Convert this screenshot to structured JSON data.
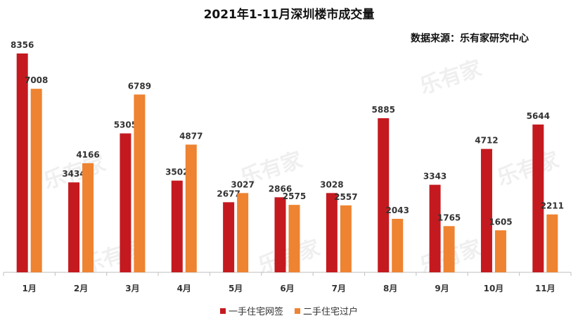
{
  "page": {
    "title": "2021年1-11月深圳楼市成交量",
    "source": "数据来源：乐有家研究中心",
    "watermark": "乐有家"
  },
  "colors": {
    "series1": "#c41a1f",
    "series2": "#ee8331",
    "axis": "#bfbfbf"
  },
  "chart_data": {
    "type": "bar",
    "title": "2021年1-11月深圳楼市成交量",
    "categories": [
      "1月",
      "2月",
      "3月",
      "4月",
      "5月",
      "6月",
      "7月",
      "8月",
      "9月",
      "10月",
      "11月"
    ],
    "series": [
      {
        "name": "一手住宅网签",
        "values": [
          8356,
          3434,
          5305,
          3502,
          2677,
          2866,
          3028,
          5885,
          3343,
          4712,
          5644
        ]
      },
      {
        "name": "二手住宅过户",
        "values": [
          7008,
          4166,
          6789,
          4877,
          3027,
          2575,
          2557,
          2043,
          1765,
          1605,
          2211
        ]
      }
    ],
    "ylim": [
      0,
      8356
    ],
    "grid": false,
    "legend_position": "bottom"
  }
}
